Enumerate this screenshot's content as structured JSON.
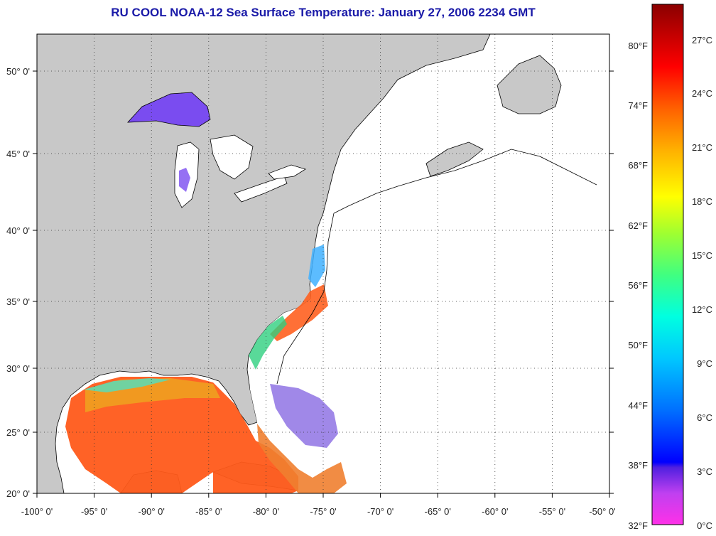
{
  "title": "RU COOL  NOAA-12  Sea Surface Temperature:  January 27, 2006 2234 GMT",
  "map": {
    "lon_ticks": [
      "-100° 0'",
      "-95° 0'",
      "-90° 0'",
      "-85° 0'",
      "-80° 0'",
      "-75° 0'",
      "-70° 0'",
      "-65° 0'",
      "-60° 0'",
      "-55° 0'",
      "-50° 0'"
    ],
    "lat_ticks": [
      "20° 0'",
      "25° 0'",
      "30° 0'",
      "35° 0'",
      "40° 0'",
      "45° 0'",
      "50° 0'"
    ],
    "land_color": "#c8c8c8",
    "water_color": "#ffffff"
  },
  "colorbar": {
    "f_labels": [
      "80°F",
      "74°F",
      "68°F",
      "62°F",
      "56°F",
      "50°F",
      "44°F",
      "38°F",
      "32°F"
    ],
    "c_labels": [
      "27°C",
      "24°C",
      "21°C",
      "18°C",
      "15°C",
      "12°C",
      "9°C",
      "6°C",
      "3°C",
      "0°C"
    ]
  }
}
